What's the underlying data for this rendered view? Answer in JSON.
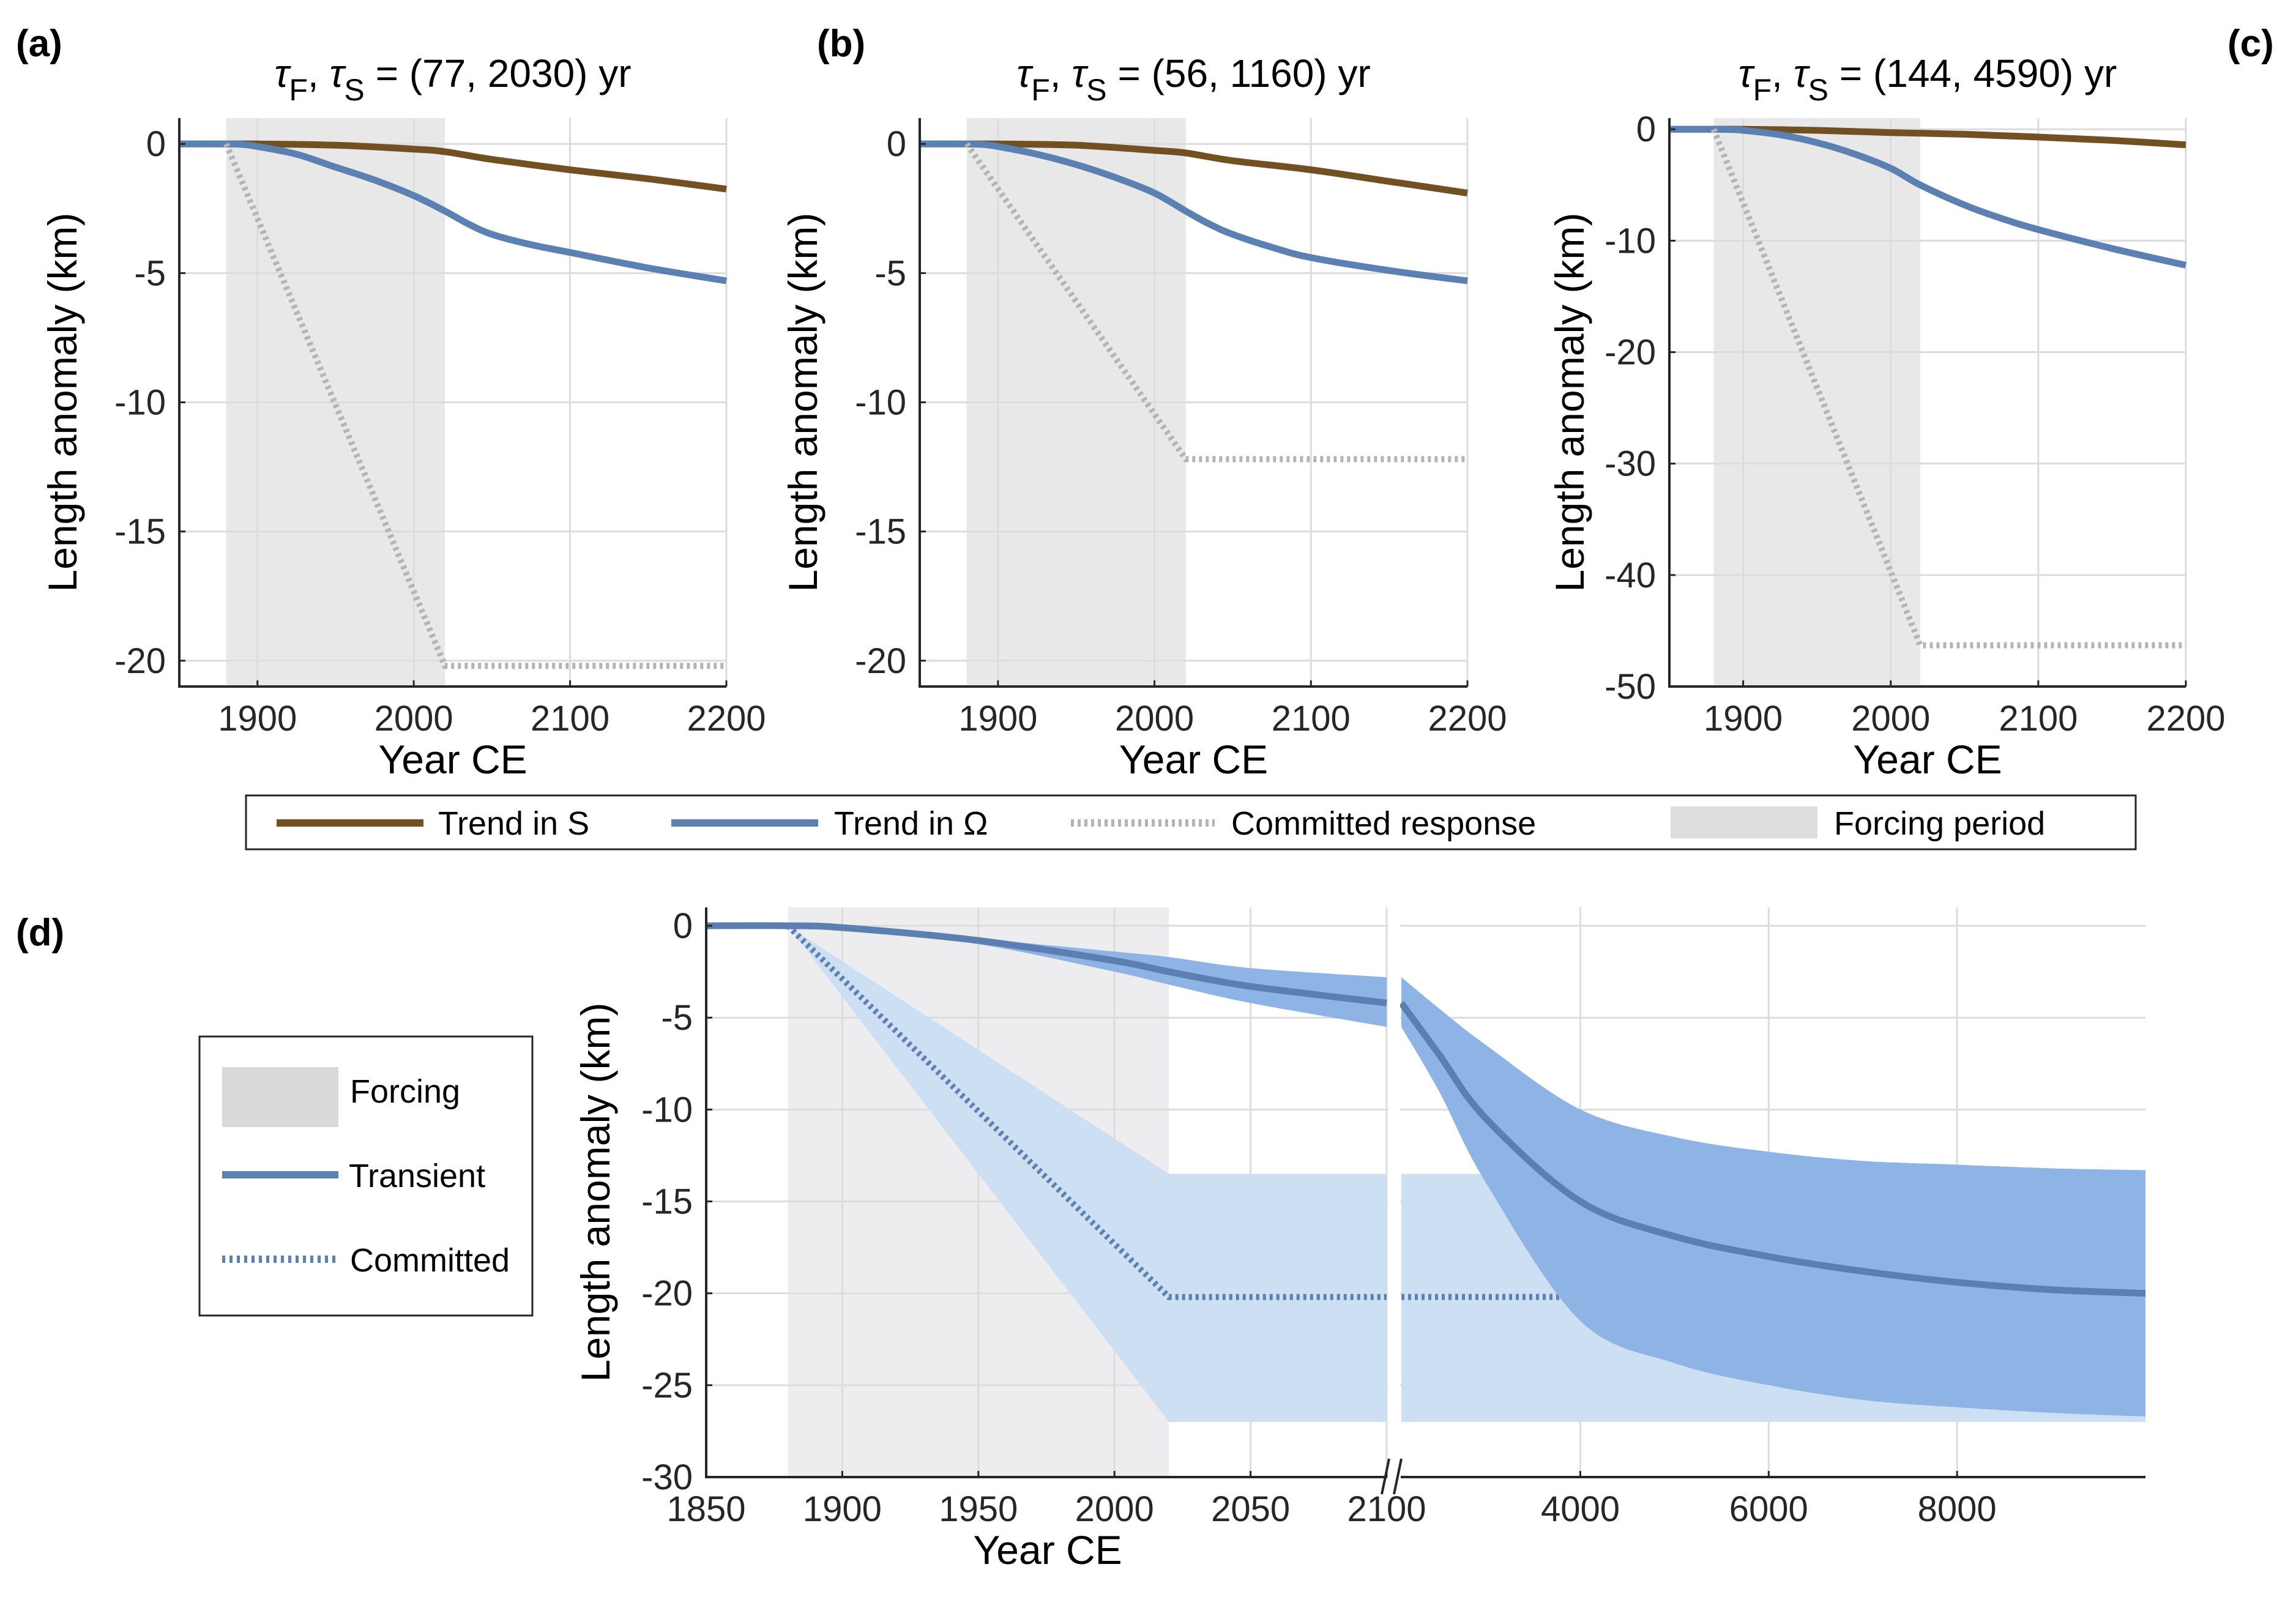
{
  "figure": {
    "panel_labels": [
      "(a)",
      "(b)",
      "(c)",
      "(d)"
    ],
    "xlabel": "Year CE",
    "ylabel": "Length anomaly (km)",
    "colors": {
      "trend_S": "#725022",
      "trend_omega": "#5b80b2",
      "committed_gray": "#b4b4b4",
      "forcing_top": "#e8e8e8",
      "forcing_d": "#ededf0",
      "band_transient": "#8db4e4",
      "band_committed": "#cddff3",
      "transient_d": "#5b7fb0",
      "committed_d": "#5b80b2"
    },
    "top_legend": {
      "items": [
        {
          "label": "Trend in S",
          "kind": "line",
          "color_key": "trend_S"
        },
        {
          "label": "Trend in Ω",
          "kind": "line",
          "color_key": "trend_omega"
        },
        {
          "label": "Committed response",
          "kind": "dotted",
          "color_key": "committed_gray"
        },
        {
          "label": "Forcing period",
          "kind": "patch",
          "color_key": "forcing_top"
        }
      ]
    },
    "d_legend": {
      "items": [
        {
          "label": "Forcing",
          "kind": "patch",
          "color_key": "forcing_d"
        },
        {
          "label": "Transient",
          "kind": "line",
          "color_key": "trend_omega"
        },
        {
          "label": "Committed",
          "kind": "dotted",
          "color_key": "committed_d"
        }
      ]
    }
  },
  "chart_data": [
    {
      "panel": "(a)",
      "type": "line",
      "title_prefix": "τ",
      "title_sub1": "F",
      "title_sub2": "S",
      "title_rest": " = (77, 2030) yr",
      "tau_F": 77,
      "tau_S": 2030,
      "xlabel": "Year CE",
      "ylabel": "Length anomaly (km)",
      "xlim": [
        1850,
        2200
      ],
      "ylim": [
        -21,
        1
      ],
      "xticks": [
        1900,
        2000,
        2100,
        2200
      ],
      "yticks": [
        0,
        -5,
        -10,
        -15,
        -20
      ],
      "forcing_period": [
        1880,
        2020
      ],
      "grid": true,
      "series": [
        {
          "name": "Trend in S",
          "style": "solid",
          "x": [
            1850,
            1880,
            1900,
            1950,
            2000,
            2020,
            2050,
            2100,
            2150,
            2200
          ],
          "y": [
            0,
            0,
            0,
            -0.05,
            -0.2,
            -0.3,
            -0.6,
            -1.0,
            -1.35,
            -1.75
          ]
        },
        {
          "name": "Trend in Ω",
          "style": "solid",
          "x": [
            1850,
            1880,
            1890,
            1900,
            1925,
            1950,
            1975,
            2000,
            2020,
            2035,
            2050,
            2075,
            2100,
            2150,
            2200
          ],
          "y": [
            0,
            0,
            -0.02,
            -0.1,
            -0.4,
            -0.9,
            -1.4,
            -2.0,
            -2.6,
            -3.1,
            -3.5,
            -3.9,
            -4.2,
            -4.8,
            -5.3
          ]
        },
        {
          "name": "Committed response",
          "style": "dotted",
          "x": [
            1880,
            2020,
            2200
          ],
          "y": [
            0,
            -20.2,
            -20.2
          ]
        }
      ]
    },
    {
      "panel": "(b)",
      "type": "line",
      "title_prefix": "τ",
      "title_sub1": "F",
      "title_sub2": "S",
      "title_rest": " = (56, 1160) yr",
      "tau_F": 56,
      "tau_S": 1160,
      "xlabel": "Year CE",
      "ylabel": "Length anomaly (km)",
      "xlim": [
        1850,
        2200
      ],
      "ylim": [
        -21,
        1
      ],
      "xticks": [
        1900,
        2000,
        2100,
        2200
      ],
      "yticks": [
        0,
        -5,
        -10,
        -15,
        -20
      ],
      "forcing_period": [
        1880,
        2020
      ],
      "grid": true,
      "series": [
        {
          "name": "Trend in S",
          "style": "solid",
          "x": [
            1850,
            1880,
            1900,
            1950,
            2000,
            2020,
            2050,
            2100,
            2150,
            2200
          ],
          "y": [
            0,
            0,
            0,
            -0.05,
            -0.25,
            -0.35,
            -0.65,
            -1.0,
            -1.45,
            -1.9
          ]
        },
        {
          "name": "Trend in Ω",
          "style": "solid",
          "x": [
            1850,
            1880,
            1890,
            1900,
            1925,
            1950,
            1975,
            2000,
            2020,
            2035,
            2050,
            2075,
            2100,
            2150,
            2200
          ],
          "y": [
            0,
            0,
            -0.02,
            -0.1,
            -0.4,
            -0.8,
            -1.3,
            -1.9,
            -2.6,
            -3.1,
            -3.5,
            -4.0,
            -4.4,
            -4.9,
            -5.3
          ]
        },
        {
          "name": "Committed response",
          "style": "dotted",
          "x": [
            1880,
            2020,
            2200
          ],
          "y": [
            0,
            -12.2,
            -12.2
          ]
        }
      ]
    },
    {
      "panel": "(c)",
      "type": "line",
      "title_prefix": "τ",
      "title_sub1": "F",
      "title_sub2": "S",
      "title_rest": " = (144, 4590) yr",
      "tau_F": 144,
      "tau_S": 4590,
      "xlabel": "Year CE",
      "ylabel": "Length anomaly (km)",
      "xlim": [
        1850,
        2200
      ],
      "ylim": [
        -50,
        1
      ],
      "xticks": [
        1900,
        2000,
        2100,
        2200
      ],
      "yticks": [
        0,
        -10,
        -20,
        -30,
        -40,
        -50
      ],
      "forcing_period": [
        1880,
        2020
      ],
      "grid": true,
      "series": [
        {
          "name": "Trend in S",
          "style": "solid",
          "x": [
            1850,
            1880,
            1900,
            1950,
            2000,
            2050,
            2100,
            2150,
            2200
          ],
          "y": [
            0,
            0,
            0,
            -0.1,
            -0.3,
            -0.45,
            -0.7,
            -1.0,
            -1.4
          ]
        },
        {
          "name": "Trend in Ω",
          "style": "solid",
          "x": [
            1850,
            1880,
            1890,
            1900,
            1925,
            1950,
            1975,
            2000,
            2020,
            2050,
            2075,
            2100,
            2150,
            2200
          ],
          "y": [
            0,
            0,
            -0.02,
            -0.1,
            -0.5,
            -1.2,
            -2.2,
            -3.5,
            -5.0,
            -6.8,
            -8.0,
            -9.0,
            -10.7,
            -12.2
          ]
        },
        {
          "name": "Committed response",
          "style": "dotted",
          "x": [
            1880,
            2020,
            2200
          ],
          "y": [
            0,
            -46.3,
            -46.3
          ]
        }
      ]
    },
    {
      "panel": "(d)",
      "type": "area",
      "xlabel": "Year CE",
      "ylabel": "Length anomaly (km)",
      "ylim": [
        -30,
        1
      ],
      "yticks": [
        0,
        -5,
        -10,
        -15,
        -20,
        -25,
        -30
      ],
      "broken_axis": {
        "segment1": {
          "xlim": [
            1850,
            2100
          ],
          "xticks": [
            1850,
            1900,
            1950,
            2000,
            2050,
            2100
          ]
        },
        "segment2": {
          "xlim": [
            2100,
            10000
          ],
          "xticks": [
            4000,
            6000,
            8000
          ]
        },
        "break_marker": "//"
      },
      "forcing_period": [
        1880,
        2020
      ],
      "grid": true,
      "series": [
        {
          "name": "Committed range",
          "style": "band_light",
          "x": [
            1880,
            2020,
            2100,
            10000
          ],
          "upper": [
            0,
            -13.5,
            -13.5,
            -13.5
          ],
          "lower": [
            0,
            -27.0,
            -27.0,
            -27.0
          ]
        },
        {
          "name": "Transient range",
          "style": "band_dark",
          "x": [
            1850,
            1880,
            1900,
            1950,
            2000,
            2020,
            2050,
            2100,
            2500,
            3000,
            4000,
            5000,
            6000,
            7000,
            8000,
            9000,
            10000
          ],
          "upper": [
            0,
            0,
            -0.05,
            -0.7,
            -1.4,
            -1.7,
            -2.3,
            -2.8,
            -4.5,
            -6.5,
            -10.0,
            -11.5,
            -12.3,
            -12.8,
            -13.0,
            -13.2,
            -13.3
          ],
          "lower": [
            0,
            0,
            -0.15,
            -1.0,
            -2.5,
            -3.2,
            -4.2,
            -5.5,
            -9.0,
            -14.0,
            -21.5,
            -23.8,
            -25.0,
            -25.8,
            -26.2,
            -26.5,
            -26.7
          ]
        },
        {
          "name": "Committed",
          "style": "dotted",
          "x": [
            1880,
            2020,
            2100,
            10000
          ],
          "y": [
            0,
            -20.2,
            -20.2,
            -20.2
          ]
        },
        {
          "name": "Transient",
          "style": "solid",
          "x": [
            1850,
            1880,
            1900,
            1950,
            2000,
            2020,
            2050,
            2100,
            2500,
            3000,
            4000,
            5000,
            6000,
            7000,
            8000,
            9000,
            10000
          ],
          "y": [
            0,
            0,
            -0.1,
            -0.8,
            -1.9,
            -2.5,
            -3.3,
            -4.2,
            -7.0,
            -10.5,
            -15.0,
            -16.9,
            -18.0,
            -18.8,
            -19.4,
            -19.8,
            -20.0
          ]
        }
      ]
    }
  ]
}
